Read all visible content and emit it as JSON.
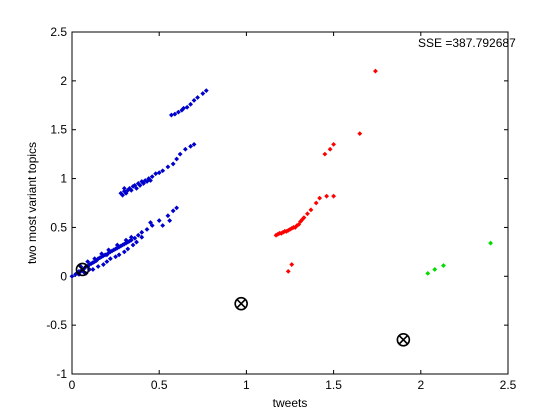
{
  "chart_data": {
    "type": "scatter",
    "xlabel": "tweets",
    "ylabel": "two most variant topics",
    "xlim": [
      0,
      2.5
    ],
    "ylim": [
      -1,
      2.5
    ],
    "xticks": [
      0,
      0.5,
      1,
      1.5,
      2,
      2.5
    ],
    "yticks": [
      -1,
      -0.5,
      0,
      0.5,
      1,
      1.5,
      2,
      2.5
    ],
    "xtick_labels": [
      "0",
      "0.5",
      "1",
      "1.5",
      "2",
      "2.5"
    ],
    "ytick_labels": [
      "-1",
      "-0.5",
      "0",
      "0.5",
      "1",
      "1.5",
      "2",
      "2.5"
    ],
    "grid": false,
    "annotation": "SSE =387.792687",
    "series": [
      {
        "color": "#0000cc",
        "marker": "dot",
        "points": [
          [
            0.0,
            0.0
          ],
          [
            0.02,
            0.02
          ],
          [
            0.03,
            0.03
          ],
          [
            0.04,
            0.05
          ],
          [
            0.05,
            0.05
          ],
          [
            0.06,
            0.07
          ],
          [
            0.07,
            0.08
          ],
          [
            0.08,
            0.1
          ],
          [
            0.09,
            0.1
          ],
          [
            0.1,
            0.12
          ],
          [
            0.11,
            0.13
          ],
          [
            0.12,
            0.14
          ],
          [
            0.13,
            0.15
          ],
          [
            0.14,
            0.16
          ],
          [
            0.15,
            0.18
          ],
          [
            0.16,
            0.19
          ],
          [
            0.17,
            0.2
          ],
          [
            0.18,
            0.21
          ],
          [
            0.19,
            0.22
          ],
          [
            0.2,
            0.22
          ],
          [
            0.21,
            0.24
          ],
          [
            0.22,
            0.25
          ],
          [
            0.23,
            0.26
          ],
          [
            0.24,
            0.27
          ],
          [
            0.25,
            0.28
          ],
          [
            0.26,
            0.29
          ],
          [
            0.27,
            0.3
          ],
          [
            0.28,
            0.31
          ],
          [
            0.29,
            0.32
          ],
          [
            0.3,
            0.33
          ],
          [
            0.31,
            0.34
          ],
          [
            0.32,
            0.35
          ],
          [
            0.33,
            0.36
          ],
          [
            0.34,
            0.37
          ],
          [
            0.36,
            0.39
          ],
          [
            0.38,
            0.42
          ],
          [
            0.4,
            0.45
          ],
          [
            0.43,
            0.48
          ],
          [
            0.46,
            0.52
          ],
          [
            0.5,
            0.57
          ],
          [
            0.55,
            0.62
          ],
          [
            0.58,
            0.67
          ],
          [
            0.6,
            0.7
          ],
          [
            0.56,
            0.57
          ],
          [
            0.52,
            0.52
          ],
          [
            0.45,
            0.55
          ],
          [
            0.4,
            0.4
          ],
          [
            0.35,
            0.32
          ],
          [
            0.3,
            0.25
          ],
          [
            0.25,
            0.2
          ],
          [
            0.2,
            0.15
          ],
          [
            0.15,
            0.1
          ],
          [
            0.1,
            0.07
          ],
          [
            0.07,
            0.04
          ],
          [
            0.04,
            0.02
          ],
          [
            0.08,
            0.03
          ],
          [
            0.12,
            0.07
          ],
          [
            0.18,
            0.12
          ],
          [
            0.22,
            0.18
          ],
          [
            0.27,
            0.22
          ],
          [
            0.32,
            0.28
          ],
          [
            0.37,
            0.35
          ],
          [
            0.05,
            0.1
          ],
          [
            0.09,
            0.15
          ],
          [
            0.13,
            0.18
          ],
          [
            0.17,
            0.23
          ],
          [
            0.21,
            0.27
          ],
          [
            0.26,
            0.32
          ],
          [
            0.31,
            0.37
          ],
          [
            0.34,
            0.4
          ],
          [
            0.28,
            0.85
          ],
          [
            0.3,
            0.87
          ],
          [
            0.32,
            0.88
          ],
          [
            0.33,
            0.9
          ],
          [
            0.35,
            0.92
          ],
          [
            0.36,
            0.93
          ],
          [
            0.38,
            0.95
          ],
          [
            0.4,
            0.97
          ],
          [
            0.42,
            0.98
          ],
          [
            0.44,
            1.0
          ],
          [
            0.46,
            1.02
          ],
          [
            0.48,
            1.05
          ],
          [
            0.5,
            1.06
          ],
          [
            0.52,
            1.08
          ],
          [
            0.55,
            1.12
          ],
          [
            0.58,
            1.15
          ],
          [
            0.6,
            1.2
          ],
          [
            0.62,
            1.25
          ],
          [
            0.65,
            1.3
          ],
          [
            0.68,
            1.33
          ],
          [
            0.7,
            1.35
          ],
          [
            0.29,
            0.83
          ],
          [
            0.31,
            0.85
          ],
          [
            0.34,
            0.88
          ],
          [
            0.37,
            0.9
          ],
          [
            0.39,
            0.93
          ],
          [
            0.41,
            0.95
          ],
          [
            0.43,
            0.97
          ],
          [
            0.45,
            0.98
          ],
          [
            0.3,
            0.9
          ],
          [
            0.57,
            1.65
          ],
          [
            0.59,
            1.66
          ],
          [
            0.61,
            1.68
          ],
          [
            0.63,
            1.7
          ],
          [
            0.64,
            1.72
          ],
          [
            0.66,
            1.73
          ],
          [
            0.68,
            1.76
          ],
          [
            0.7,
            1.8
          ],
          [
            0.72,
            1.83
          ],
          [
            0.75,
            1.87
          ],
          [
            0.77,
            1.9
          ]
        ]
      },
      {
        "color": "#ff0000",
        "marker": "dot",
        "points": [
          [
            1.17,
            0.42
          ],
          [
            1.18,
            0.43
          ],
          [
            1.19,
            0.44
          ],
          [
            1.2,
            0.44
          ],
          [
            1.21,
            0.45
          ],
          [
            1.22,
            0.46
          ],
          [
            1.23,
            0.46
          ],
          [
            1.24,
            0.47
          ],
          [
            1.25,
            0.48
          ],
          [
            1.26,
            0.49
          ],
          [
            1.27,
            0.5
          ],
          [
            1.28,
            0.5
          ],
          [
            1.29,
            0.52
          ],
          [
            1.3,
            0.53
          ],
          [
            1.31,
            0.56
          ],
          [
            1.33,
            0.6
          ],
          [
            1.35,
            0.64
          ],
          [
            1.37,
            0.68
          ],
          [
            1.4,
            0.75
          ],
          [
            1.42,
            0.8
          ],
          [
            1.46,
            0.82
          ],
          [
            1.5,
            0.82
          ],
          [
            1.45,
            1.25
          ],
          [
            1.48,
            1.3
          ],
          [
            1.5,
            1.35
          ],
          [
            1.65,
            1.46
          ],
          [
            1.74,
            2.1
          ],
          [
            1.26,
            0.12
          ],
          [
            1.24,
            0.05
          ],
          [
            1.32,
            0.58
          ]
        ]
      },
      {
        "color": "#00dd00",
        "marker": "dot",
        "points": [
          [
            2.04,
            0.03
          ],
          [
            2.08,
            0.07
          ],
          [
            2.13,
            0.11
          ],
          [
            2.4,
            0.34
          ]
        ]
      },
      {
        "color": "#000000",
        "marker": "circle-x",
        "points": [
          [
            0.06,
            0.07
          ],
          [
            0.97,
            -0.28
          ],
          [
            1.9,
            -0.65
          ]
        ]
      }
    ]
  }
}
